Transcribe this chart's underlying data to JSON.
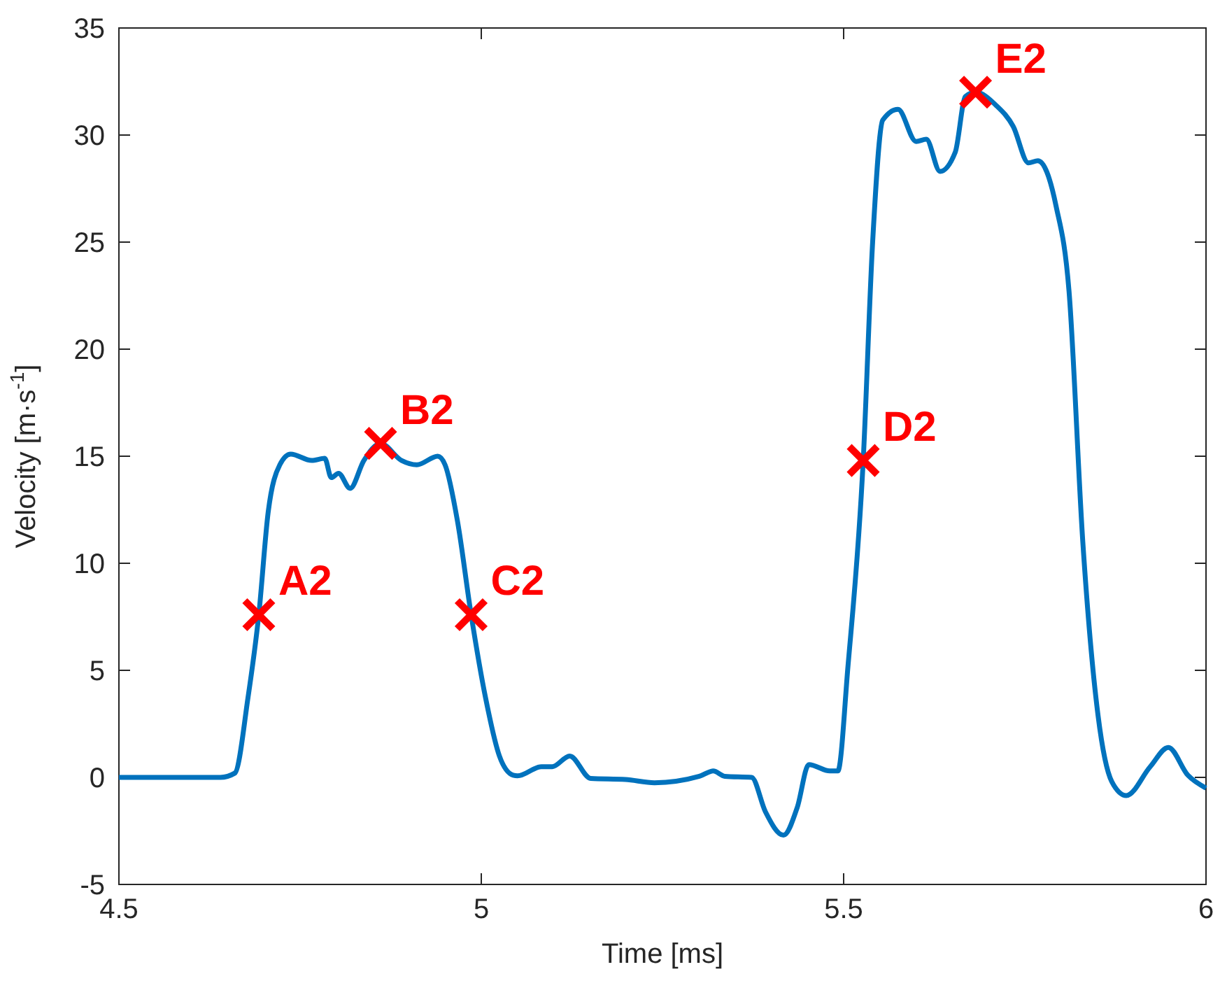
{
  "chart_data": {
    "type": "line",
    "xlabel": "Time [ms]",
    "ylabel": "Velocity [m·s$^{-1}$]",
    "xlim": [
      4.5,
      6
    ],
    "xticks": [
      4.5,
      5,
      5.5,
      6
    ],
    "ylim": [
      -5,
      35
    ],
    "yticks": [
      -5,
      0,
      5,
      10,
      15,
      20,
      25,
      30,
      35
    ],
    "grid": false,
    "series": [
      {
        "color": "#0072bd",
        "marker": "none",
        "x": [
          4.5,
          4.55,
          4.6,
          4.64,
          4.66,
          4.678,
          4.693,
          4.706,
          4.722,
          4.737,
          4.766,
          4.784,
          4.793,
          4.803,
          4.819,
          4.838,
          4.861,
          4.89,
          4.911,
          4.94,
          4.95,
          4.967,
          4.986,
          5.006,
          5.025,
          5.044,
          5.05,
          5.083,
          5.098,
          5.122,
          5.151,
          5.199,
          5.239,
          5.301,
          5.32,
          5.336,
          5.373,
          5.392,
          5.417,
          5.436,
          5.452,
          5.481,
          5.492,
          5.506,
          5.527,
          5.54,
          5.554,
          5.575,
          5.6,
          5.614,
          5.633,
          5.654,
          5.668,
          5.682,
          5.71,
          5.734,
          5.755,
          5.768,
          5.793,
          5.811,
          5.83,
          5.851,
          5.87,
          5.89,
          5.923,
          5.948,
          5.975,
          6.0
        ],
        "values": [
          0,
          0,
          0,
          0,
          0.2,
          3.7,
          7.6,
          12.4,
          14.6,
          15.1,
          14.8,
          14.9,
          14.0,
          14.2,
          13.5,
          14.8,
          15.6,
          14.8,
          14.6,
          15.0,
          14.6,
          12.0,
          7.6,
          3.7,
          1.0,
          0.1,
          0.07,
          0.5,
          0.5,
          1.0,
          -0.05,
          -0.1,
          -0.25,
          0.05,
          0.3,
          0.05,
          0,
          -1.6,
          -2.7,
          -1.4,
          0.6,
          0.3,
          0.3,
          5.2,
          14.8,
          25.0,
          30.7,
          31.2,
          29.7,
          29.8,
          28.3,
          29.2,
          31.8,
          32.0,
          31.4,
          30.4,
          28.7,
          28.8,
          26.7,
          22.7,
          11.0,
          2.9,
          -0.2,
          -0.85,
          0.5,
          1.4,
          0.1,
          -0.5
        ]
      },
      {
        "type": "scatter",
        "color": "#ff0000",
        "marker": "cross",
        "x": [
          4.693,
          4.861,
          4.986,
          5.527,
          5.682
        ],
        "values": [
          7.6,
          15.6,
          7.6,
          14.8,
          32.0
        ]
      }
    ],
    "annotations": [
      {
        "text": "A2",
        "x": 4.693,
        "y": 7.6
      },
      {
        "text": "B2",
        "x": 4.861,
        "y": 15.6
      },
      {
        "text": "C2",
        "x": 4.986,
        "y": 7.6
      },
      {
        "text": "D2",
        "x": 5.527,
        "y": 14.8
      },
      {
        "text": "E2",
        "x": 5.682,
        "y": 32.0
      }
    ]
  }
}
